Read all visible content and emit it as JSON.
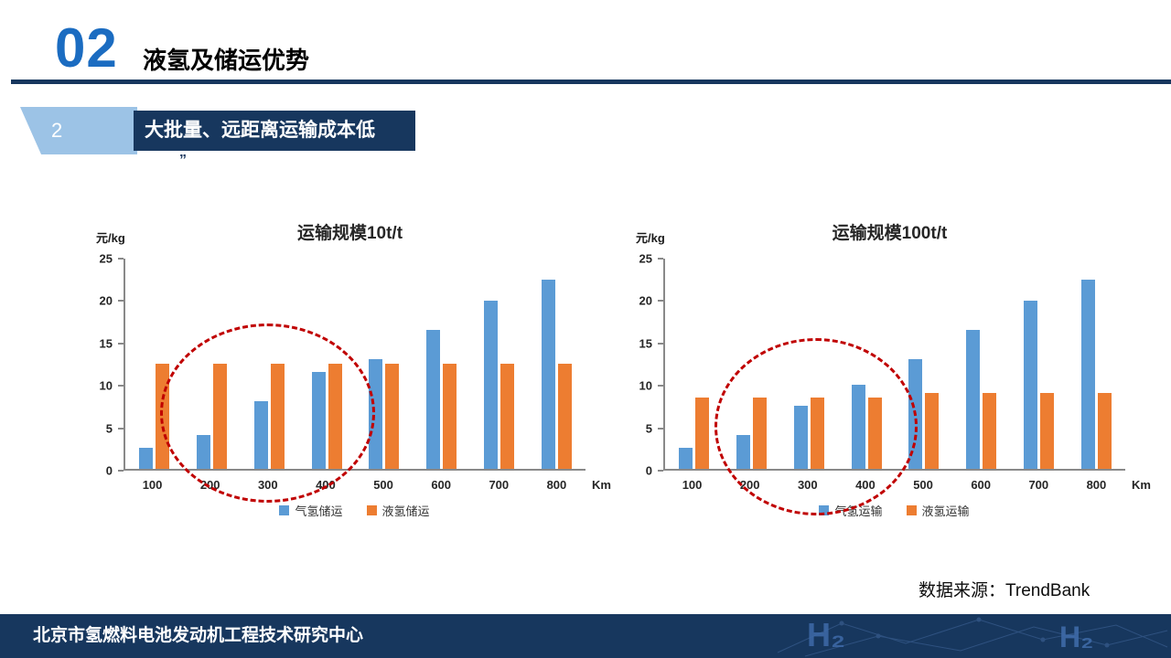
{
  "header": {
    "number": "02",
    "title": "液氢及储运优势"
  },
  "banner": {
    "index": "2",
    "label": "大批量、远距离运输成本低",
    "mark": "„"
  },
  "source_label": "数据来源：TrendBank",
  "footer": {
    "org": "北京市氢燃料电池发动机工程技术研究中心",
    "watermark": "H₂"
  },
  "colors": {
    "accent_blue": "#1B6CC1",
    "navy": "#17375E",
    "bar_blue": "#5B9BD5",
    "bar_orange": "#ED7D31",
    "highlight_red": "#C00000",
    "tab_light_blue": "#9CC3E6"
  },
  "chart_data": [
    {
      "type": "bar",
      "title": "运输规模10t/t",
      "ylabel": "元/kg",
      "xlabel": "Km",
      "ylim": [
        0,
        25
      ],
      "yticks": [
        0,
        5,
        10,
        15,
        20,
        25
      ],
      "categories": [
        "100",
        "200",
        "300",
        "400",
        "500",
        "600",
        "700",
        "800"
      ],
      "series": [
        {
          "name": "气氢储运",
          "color": "#5B9BD5",
          "values": [
            2.5,
            4,
            8,
            11.5,
            13,
            16.5,
            20,
            22.5
          ]
        },
        {
          "name": "液氢储运",
          "color": "#ED7D31",
          "values": [
            12.5,
            12.5,
            12.5,
            12.5,
            12.5,
            12.5,
            12.5,
            12.5
          ]
        }
      ],
      "grid": false,
      "legend_position": "bottom",
      "annotation": "red dashed ellipse highlighting 200-400 Km range"
    },
    {
      "type": "bar",
      "title": "运输规模100t/t",
      "ylabel": "元/kg",
      "xlabel": "Km",
      "ylim": [
        0,
        25
      ],
      "yticks": [
        0,
        5,
        10,
        15,
        20,
        25
      ],
      "categories": [
        "100",
        "200",
        "300",
        "400",
        "500",
        "600",
        "700",
        "800"
      ],
      "series": [
        {
          "name": "气氢运输",
          "color": "#5B9BD5",
          "values": [
            2.5,
            4,
            7.5,
            10,
            13,
            16.5,
            20,
            22.5
          ]
        },
        {
          "name": "液氢运输",
          "color": "#ED7D31",
          "values": [
            8.5,
            8.5,
            8.5,
            8.5,
            9,
            9,
            9,
            9
          ]
        }
      ],
      "grid": false,
      "legend_position": "bottom",
      "annotation": "red dashed ellipse highlighting 200-400 Km range"
    }
  ]
}
